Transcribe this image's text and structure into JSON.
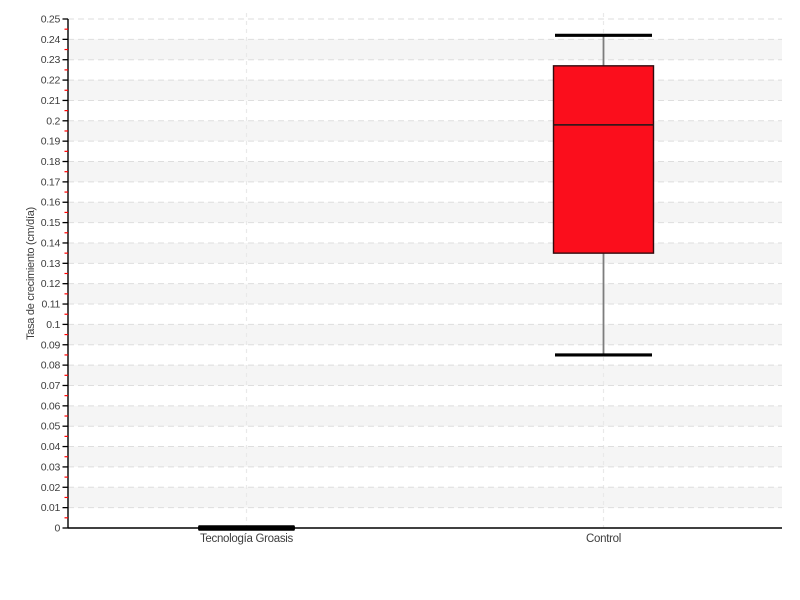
{
  "page": {
    "background": "#ffffff"
  },
  "chart_data": {
    "type": "box",
    "title": "",
    "xlabel": "",
    "ylabel": "Tasa de crecimiento (cm/día)",
    "categories": [
      "Tecnología Groasis",
      "Control"
    ],
    "series": [
      {
        "name": "Tecnología Groasis",
        "min": 0,
        "q1": 0,
        "median": 0,
        "q3": 0,
        "max": 0
      },
      {
        "name": "Control",
        "min": 0.085,
        "q1": 0.135,
        "median": 0.198,
        "q3": 0.227,
        "max": 0.242
      }
    ],
    "ylim": [
      0,
      0.25
    ],
    "ytick_step": 0.01,
    "minor_tick_step": 0.005,
    "ytick_labels": [
      "0",
      "0.01",
      "0.02",
      "0.03",
      "0.04",
      "0.05",
      "0.06",
      "0.07",
      "0.08",
      "0.09",
      "0.1",
      "0.11",
      "0.12",
      "0.13",
      "0.14",
      "0.15",
      "0.16",
      "0.17",
      "0.18",
      "0.19",
      "0.2",
      "0.21",
      "0.22",
      "0.23",
      "0.24",
      "0.25"
    ],
    "legend_position": "none",
    "grid": {
      "horizontal": "dashed-every-tick",
      "vertical": "dashed-at-category-centers",
      "alternating_bands": true
    },
    "style": {
      "box_fill": "#fb0e1c",
      "box_stroke": "#330a0e",
      "median_color": "#1a1a1a",
      "whisker_stem_color": "#7d7d7d",
      "whisker_cap_color": "#000000",
      "collapsed_box_color": "#000000",
      "major_tick_color": "#000000",
      "minor_tick_color": "#ff0000",
      "axis_line_color": "#000000",
      "band_fill": "#f5f5f5",
      "hgrid_color": "#dedede",
      "vgrid_color": "#e9e9e9",
      "text_color": "#3d3d3d"
    }
  }
}
